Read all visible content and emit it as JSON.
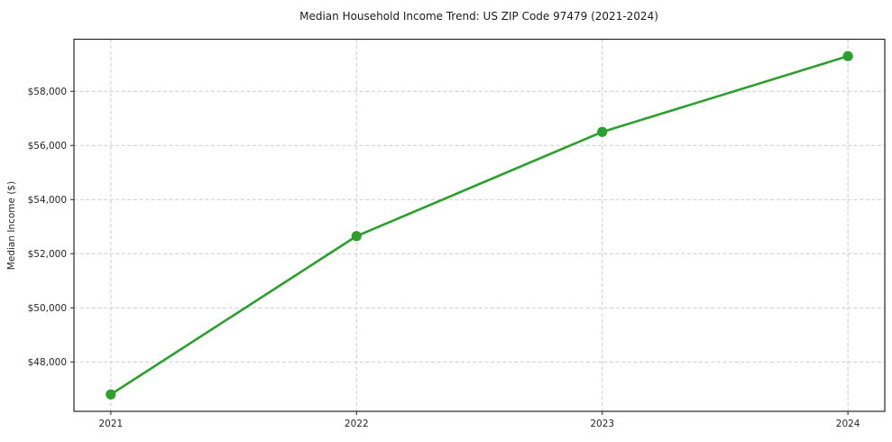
{
  "figure": {
    "background": "#ffffff"
  },
  "chart_data": {
    "type": "line",
    "title": "Median Household Income Trend: US ZIP Code 97479 (2021-2024)",
    "xlabel": "",
    "ylabel": "Median Income ($)",
    "x": [
      2021,
      2022,
      2023,
      2024
    ],
    "xtick_labels": [
      "2021",
      "2022",
      "2023",
      "2024"
    ],
    "series": [
      {
        "values": [
          46800,
          52650,
          56500,
          59300
        ],
        "color": "#2ca02c",
        "marker": "circle"
      }
    ],
    "xlim": [
      2020.85,
      2024.15
    ],
    "ylim": [
      46175,
      59925
    ],
    "ytick_values": [
      48000,
      50000,
      52000,
      54000,
      56000,
      58000
    ],
    "ytick_labels": [
      "$48,000",
      "$50,000",
      "$52,000",
      "$54,000",
      "$56,000",
      "$58,000"
    ],
    "grid": {
      "show": true,
      "style": "dashed",
      "color": "#cccccc"
    },
    "legend_position": "none",
    "line_color": "#2ca02c"
  }
}
